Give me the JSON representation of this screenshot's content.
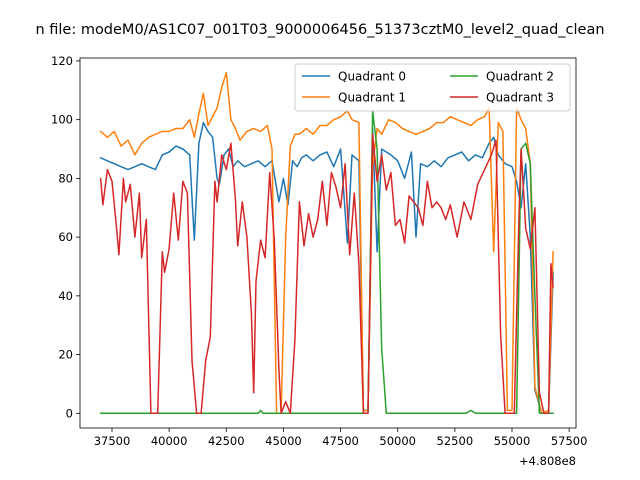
{
  "chart_data": {
    "type": "line",
    "title": "n file: modeM0/AS1C07_001T03_9000006456_51373cztM0_level2_quad_clean",
    "xlabel": "",
    "ylabel": "",
    "x_offset_label": "+4.808e8",
    "xlim": [
      36100,
      57800
    ],
    "ylim": [
      -5,
      121
    ],
    "grid": false,
    "legend_placement": "top-right",
    "legend_columns": 2,
    "x_ticks": [
      37500,
      40000,
      42500,
      45000,
      47500,
      50000,
      52500,
      55000,
      57500
    ],
    "x_tick_labels": [
      "37500",
      "40000",
      "42500",
      "45000",
      "47500",
      "50000",
      "52500",
      "55000",
      "57500"
    ],
    "y_ticks": [
      0,
      20,
      40,
      60,
      80,
      100,
      120
    ],
    "y_tick_labels": [
      "0",
      "20",
      "40",
      "60",
      "80",
      "100",
      "120"
    ],
    "series": [
      {
        "name": "Quadrant 0",
        "color": "#1f77b4",
        "points": [
          [
            37000,
            87
          ],
          [
            37300,
            86
          ],
          [
            37600,
            85
          ],
          [
            37900,
            84
          ],
          [
            38200,
            83
          ],
          [
            38500,
            84
          ],
          [
            38800,
            85
          ],
          [
            39100,
            84
          ],
          [
            39400,
            83
          ],
          [
            39700,
            88
          ],
          [
            40000,
            89
          ],
          [
            40300,
            91
          ],
          [
            40600,
            90
          ],
          [
            40900,
            88
          ],
          [
            41100,
            59
          ],
          [
            41300,
            92
          ],
          [
            41500,
            99
          ],
          [
            41700,
            96
          ],
          [
            41900,
            94
          ],
          [
            42100,
            80
          ],
          [
            42200,
            78
          ],
          [
            42400,
            88
          ],
          [
            42600,
            90
          ],
          [
            42800,
            84
          ],
          [
            43000,
            86
          ],
          [
            43300,
            84
          ],
          [
            43600,
            85
          ],
          [
            43900,
            86
          ],
          [
            44200,
            84
          ],
          [
            44500,
            86
          ],
          [
            44800,
            72
          ],
          [
            45000,
            80
          ],
          [
            45200,
            71
          ],
          [
            45400,
            86
          ],
          [
            45600,
            84
          ],
          [
            45800,
            87
          ],
          [
            46000,
            88
          ],
          [
            46300,
            86
          ],
          [
            46600,
            88
          ],
          [
            46900,
            89
          ],
          [
            47200,
            84
          ],
          [
            47500,
            90
          ],
          [
            47800,
            58
          ],
          [
            48000,
            88
          ],
          [
            48300,
            86
          ],
          [
            48500,
            1
          ],
          [
            48700,
            1
          ],
          [
            48900,
            97
          ],
          [
            49100,
            55
          ],
          [
            49300,
            90
          ],
          [
            49500,
            89
          ],
          [
            49700,
            88
          ],
          [
            50000,
            86
          ],
          [
            50300,
            80
          ],
          [
            50600,
            89
          ],
          [
            50800,
            60
          ],
          [
            51000,
            85
          ],
          [
            51300,
            84
          ],
          [
            51600,
            86
          ],
          [
            51900,
            84
          ],
          [
            52200,
            87
          ],
          [
            52500,
            88
          ],
          [
            52800,
            89
          ],
          [
            53100,
            86
          ],
          [
            53400,
            88
          ],
          [
            53700,
            87
          ],
          [
            54000,
            92
          ],
          [
            54200,
            94
          ],
          [
            54400,
            88
          ],
          [
            54700,
            85
          ],
          [
            55000,
            84
          ],
          [
            55200,
            79
          ],
          [
            55400,
            70
          ],
          [
            55600,
            85
          ],
          [
            55800,
            60
          ],
          [
            56000,
            8
          ],
          [
            56300,
            0
          ],
          [
            56600,
            0
          ],
          [
            56800,
            48
          ]
        ]
      },
      {
        "name": "Quadrant 1",
        "color": "#ff7f0e",
        "points": [
          [
            37000,
            96
          ],
          [
            37300,
            94
          ],
          [
            37600,
            96
          ],
          [
            37900,
            91
          ],
          [
            38200,
            93
          ],
          [
            38500,
            88
          ],
          [
            38800,
            92
          ],
          [
            39100,
            94
          ],
          [
            39400,
            95
          ],
          [
            39700,
            96
          ],
          [
            40000,
            96
          ],
          [
            40300,
            97
          ],
          [
            40600,
            97
          ],
          [
            40900,
            100
          ],
          [
            41100,
            94
          ],
          [
            41300,
            102
          ],
          [
            41500,
            109
          ],
          [
            41700,
            98
          ],
          [
            41900,
            101
          ],
          [
            42100,
            104
          ],
          [
            42300,
            111
          ],
          [
            42500,
            116
          ],
          [
            42700,
            100
          ],
          [
            42900,
            97
          ],
          [
            43100,
            93
          ],
          [
            43400,
            96
          ],
          [
            43700,
            97
          ],
          [
            44000,
            96
          ],
          [
            44300,
            98
          ],
          [
            44500,
            90
          ],
          [
            44700,
            0
          ],
          [
            44900,
            0
          ],
          [
            45100,
            60
          ],
          [
            45300,
            91
          ],
          [
            45500,
            95
          ],
          [
            45700,
            95
          ],
          [
            46000,
            97
          ],
          [
            46300,
            95
          ],
          [
            46600,
            98
          ],
          [
            46900,
            98
          ],
          [
            47200,
            100
          ],
          [
            47500,
            101
          ],
          [
            47800,
            103
          ],
          [
            48000,
            100
          ],
          [
            48300,
            99
          ],
          [
            48500,
            1
          ],
          [
            48700,
            1
          ],
          [
            48900,
            84
          ],
          [
            49100,
            97
          ],
          [
            49300,
            95
          ],
          [
            49600,
            100
          ],
          [
            49900,
            99
          ],
          [
            50200,
            97
          ],
          [
            50500,
            96
          ],
          [
            50800,
            95
          ],
          [
            51100,
            96
          ],
          [
            51400,
            97
          ],
          [
            51700,
            99
          ],
          [
            52000,
            99
          ],
          [
            52300,
            101
          ],
          [
            52600,
            100
          ],
          [
            52900,
            99
          ],
          [
            53200,
            98
          ],
          [
            53500,
            100
          ],
          [
            53800,
            101
          ],
          [
            54000,
            104
          ],
          [
            54200,
            55
          ],
          [
            54400,
            99
          ],
          [
            54600,
            96
          ],
          [
            54800,
            1
          ],
          [
            55000,
            1
          ],
          [
            55200,
            104
          ],
          [
            55400,
            100
          ],
          [
            55600,
            97
          ],
          [
            55800,
            85
          ],
          [
            56000,
            9
          ],
          [
            56300,
            0
          ],
          [
            56600,
            1
          ],
          [
            56800,
            55
          ]
        ]
      },
      {
        "name": "Quadrant 2",
        "color": "#2ca02c",
        "points": [
          [
            37000,
            0
          ],
          [
            39000,
            0
          ],
          [
            41000,
            0
          ],
          [
            43000,
            0
          ],
          [
            43900,
            0
          ],
          [
            44000,
            1
          ],
          [
            44100,
            0
          ],
          [
            46000,
            0
          ],
          [
            48500,
            0
          ],
          [
            48700,
            0
          ],
          [
            48900,
            103
          ],
          [
            49100,
            90
          ],
          [
            49300,
            22
          ],
          [
            49500,
            0
          ],
          [
            51000,
            0
          ],
          [
            53000,
            0
          ],
          [
            53200,
            1
          ],
          [
            53400,
            0
          ],
          [
            54500,
            0
          ],
          [
            55200,
            0
          ],
          [
            55400,
            90
          ],
          [
            55600,
            92
          ],
          [
            55800,
            85
          ],
          [
            56000,
            40
          ],
          [
            56200,
            0
          ],
          [
            56800,
            0
          ]
        ]
      },
      {
        "name": "Quadrant 3",
        "color": "#d62728",
        "points": [
          [
            37000,
            80
          ],
          [
            37100,
            71
          ],
          [
            37300,
            83
          ],
          [
            37500,
            79
          ],
          [
            37700,
            63
          ],
          [
            37800,
            54
          ],
          [
            38000,
            80
          ],
          [
            38100,
            72
          ],
          [
            38300,
            78
          ],
          [
            38500,
            60
          ],
          [
            38700,
            75
          ],
          [
            38800,
            53
          ],
          [
            39000,
            66
          ],
          [
            39200,
            0
          ],
          [
            39500,
            0
          ],
          [
            39700,
            55
          ],
          [
            39800,
            48
          ],
          [
            40000,
            56
          ],
          [
            40200,
            75
          ],
          [
            40400,
            59
          ],
          [
            40600,
            79
          ],
          [
            40800,
            75
          ],
          [
            41000,
            18
          ],
          [
            41200,
            0
          ],
          [
            41400,
            0
          ],
          [
            41600,
            18
          ],
          [
            41800,
            26
          ],
          [
            42000,
            79
          ],
          [
            42100,
            72
          ],
          [
            42300,
            88
          ],
          [
            42500,
            83
          ],
          [
            42700,
            92
          ],
          [
            42900,
            73
          ],
          [
            43000,
            57
          ],
          [
            43200,
            72
          ],
          [
            43400,
            60
          ],
          [
            43600,
            34
          ],
          [
            43700,
            7
          ],
          [
            43800,
            45
          ],
          [
            44000,
            59
          ],
          [
            44200,
            53
          ],
          [
            44400,
            82
          ],
          [
            44600,
            59
          ],
          [
            44800,
            15
          ],
          [
            44900,
            0
          ],
          [
            45100,
            4
          ],
          [
            45300,
            0
          ],
          [
            45500,
            25
          ],
          [
            45700,
            72
          ],
          [
            45900,
            57
          ],
          [
            46100,
            68
          ],
          [
            46300,
            60
          ],
          [
            46500,
            66
          ],
          [
            46700,
            79
          ],
          [
            46900,
            64
          ],
          [
            47100,
            82
          ],
          [
            47300,
            77
          ],
          [
            47500,
            70
          ],
          [
            47700,
            85
          ],
          [
            47900,
            54
          ],
          [
            48100,
            75
          ],
          [
            48300,
            51
          ],
          [
            48500,
            0
          ],
          [
            48700,
            0
          ],
          [
            48900,
            95
          ],
          [
            49100,
            79
          ],
          [
            49300,
            88
          ],
          [
            49500,
            76
          ],
          [
            49700,
            82
          ],
          [
            49900,
            64
          ],
          [
            50100,
            66
          ],
          [
            50300,
            58
          ],
          [
            50500,
            74
          ],
          [
            50700,
            72
          ],
          [
            50900,
            70
          ],
          [
            51100,
            64
          ],
          [
            51300,
            79
          ],
          [
            51500,
            70
          ],
          [
            51700,
            72
          ],
          [
            51900,
            70
          ],
          [
            52100,
            66
          ],
          [
            52300,
            71
          ],
          [
            52600,
            60
          ],
          [
            52900,
            72
          ],
          [
            53200,
            66
          ],
          [
            53500,
            78
          ],
          [
            53800,
            83
          ],
          [
            54100,
            88
          ],
          [
            54300,
            93
          ],
          [
            54500,
            27
          ],
          [
            54700,
            0
          ],
          [
            54900,
            0
          ],
          [
            55100,
            0
          ],
          [
            55300,
            66
          ],
          [
            55400,
            90
          ],
          [
            55600,
            63
          ],
          [
            55800,
            56
          ],
          [
            56000,
            70
          ],
          [
            56200,
            7
          ],
          [
            56400,
            0
          ],
          [
            56600,
            0
          ],
          [
            56700,
            51
          ],
          [
            56800,
            43
          ]
        ]
      }
    ]
  }
}
